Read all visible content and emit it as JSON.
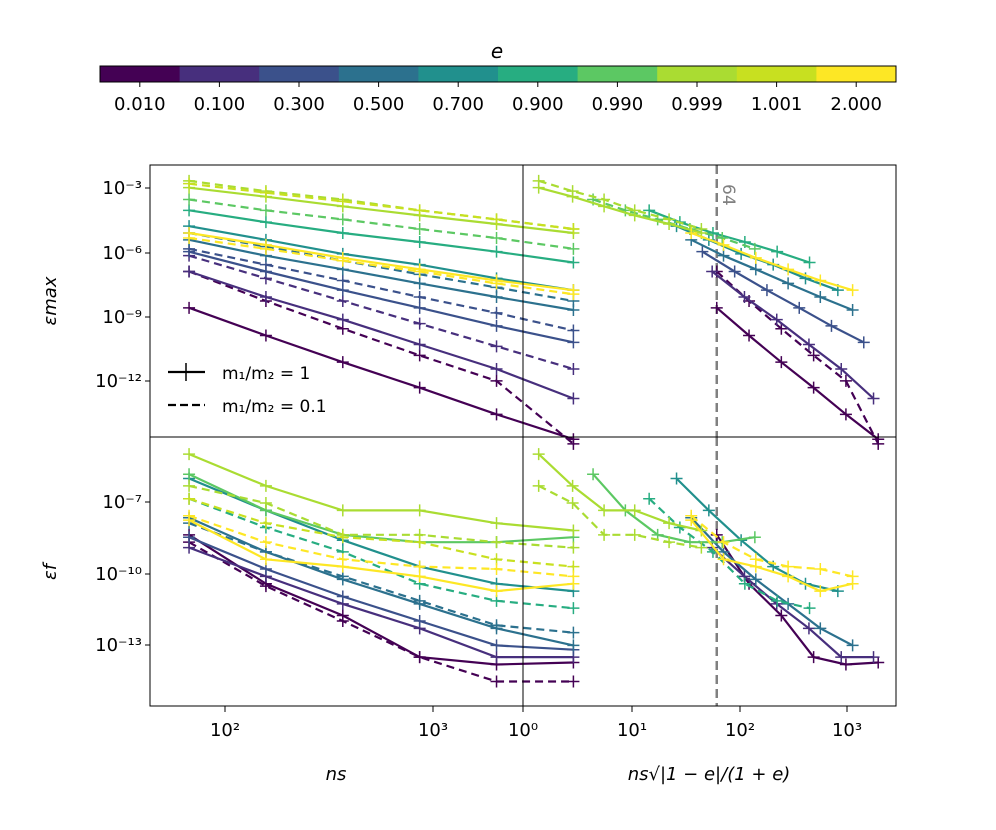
{
  "colorbar": {
    "title": "e",
    "ticks": [
      "0.010",
      "0.100",
      "0.300",
      "0.500",
      "0.700",
      "0.900",
      "0.990",
      "0.999",
      "1.001",
      "2.000"
    ],
    "colors": [
      "#440154",
      "#472f7d",
      "#3b518b",
      "#2c718e",
      "#21908d",
      "#27ad81",
      "#5cc863",
      "#aadc32",
      "#c8e020",
      "#fde725"
    ]
  },
  "legend": {
    "solid": "m₁/m₂ = 1",
    "dashed": "m₁/m₂ = 0.1"
  },
  "annotation": "64",
  "chart_data": [
    {
      "type": "line",
      "panel": "top-left",
      "ylabel": "εmax",
      "xscale": "log",
      "yscale": "log",
      "xlim": [
        45,
        1300
      ],
      "ylim": [
        1e-14,
        0.01
      ],
      "yticks": [
        "10⁻³",
        "10⁻⁶",
        "10⁻⁹",
        "10⁻¹²"
      ],
      "x": [
        64,
        128,
        256,
        512,
        1024,
        2048
      ],
      "series": [
        {
          "e": "0.010",
          "style": "solid",
          "values": [
            5e-09,
            3e-10,
            2e-11,
            1.5e-12,
            1e-13,
            8e-15
          ]
        },
        {
          "e": "0.010",
          "style": "dashed",
          "values": [
            2e-07,
            1e-08,
            6e-10,
            4e-11,
            3e-12,
            5e-15
          ]
        },
        {
          "e": "0.100",
          "style": "solid",
          "values": [
            2e-07,
            1.5e-08,
            1.5e-09,
            1.2e-10,
            1e-11,
            5e-13
          ]
        },
        {
          "e": "0.100",
          "style": "dashed",
          "values": [
            1e-06,
            1e-07,
            1e-08,
            1e-09,
            1e-10,
            1e-11
          ]
        },
        {
          "e": "0.300",
          "style": "solid",
          "values": [
            1.5e-06,
            2e-07,
            3e-08,
            5e-09,
            8e-10,
            1.5e-10
          ]
        },
        {
          "e": "0.300",
          "style": "dashed",
          "values": [
            2e-06,
            4e-07,
            8e-08,
            1.5e-08,
            3e-09,
            5e-10
          ]
        },
        {
          "e": "0.500",
          "style": "solid",
          "values": [
            5e-06,
            1e-06,
            2.5e-07,
            6e-08,
            1.5e-08,
            4e-09
          ]
        },
        {
          "e": "0.500",
          "style": "dashed",
          "values": [
            1e-05,
            2.5e-06,
            6e-07,
            1.5e-07,
            4e-08,
            1e-08
          ]
        },
        {
          "e": "0.700",
          "style": "solid",
          "values": [
            2e-05,
            5e-06,
            1.2e-06,
            4e-07,
            1e-07,
            3e-08
          ]
        },
        {
          "e": "0.900",
          "style": "solid",
          "values": [
            0.0001,
            3e-05,
            1e-05,
            4e-06,
            1.5e-06,
            5e-07
          ]
        },
        {
          "e": "0.990",
          "style": "dashed",
          "values": [
            0.0003,
            0.0001,
            4e-05,
            1.5e-05,
            6e-06,
            2e-06
          ]
        },
        {
          "e": "0.999",
          "style": "solid",
          "values": [
            0.001,
            0.0004,
            0.00015,
            6e-05,
            2.5e-05,
            1e-05
          ]
        },
        {
          "e": "0.999",
          "style": "dashed",
          "values": [
            0.002,
            0.0007,
            0.0003,
            0.0001,
            4e-05,
            1.5e-05
          ]
        },
        {
          "e": "1.001",
          "style": "dashed",
          "values": [
            0.0015,
            0.0006,
            0.00025,
            0.0001,
            4e-05,
            1.5e-05
          ]
        },
        {
          "e": "2.000",
          "style": "solid",
          "values": [
            1e-05,
            3e-06,
            8e-07,
            2.5e-07,
            8e-08,
            3e-08
          ]
        },
        {
          "e": "2.000",
          "style": "dashed",
          "values": [
            6e-06,
            2e-06,
            6e-07,
            2e-07,
            6e-08,
            2e-08
          ]
        }
      ]
    },
    {
      "type": "line",
      "panel": "top-right",
      "xscale": "log",
      "yscale": "log",
      "xlim": [
        1,
        3000
      ],
      "ylim": [
        1e-14,
        0.01
      ],
      "annotation_x": 64,
      "series": [
        {
          "e": "0.010",
          "style": "solid",
          "x": [
            64,
            128,
            256,
            512,
            1024,
            2048
          ],
          "values": [
            5e-09,
            3e-10,
            2e-11,
            1.5e-12,
            1e-13,
            8e-15
          ]
        },
        {
          "e": "0.010",
          "style": "dashed",
          "x": [
            64,
            128,
            256,
            512,
            1024,
            2048
          ],
          "values": [
            2e-07,
            1e-08,
            6e-10,
            4e-11,
            3e-12,
            5e-15
          ]
        },
        {
          "e": "0.100",
          "style": "solid",
          "x": [
            58,
            116,
            232,
            463,
            926,
            1852
          ],
          "values": [
            2e-07,
            1.5e-08,
            1.5e-09,
            1.2e-10,
            1e-11,
            5e-13
          ]
        },
        {
          "e": "0.300",
          "style": "solid",
          "x": [
            47,
            94,
            188,
            376,
            751,
            1502
          ],
          "values": [
            1.5e-06,
            2e-07,
            3e-08,
            5e-09,
            8e-10,
            1.5e-10
          ]
        },
        {
          "e": "0.500",
          "style": "solid",
          "x": [
            37,
            74,
            148,
            296,
            591,
            1182
          ],
          "values": [
            5e-06,
            1e-06,
            2.5e-07,
            6e-08,
            1.5e-08,
            4e-09
          ]
        },
        {
          "e": "0.700",
          "style": "solid",
          "x": [
            27,
            54,
            108,
            215,
            430,
            861
          ],
          "values": [
            2e-05,
            5e-06,
            1.2e-06,
            4e-07,
            1e-07,
            3e-08
          ]
        },
        {
          "e": "0.900",
          "style": "solid",
          "x": [
            15,
            29,
            59,
            117,
            234,
            469
          ],
          "values": [
            0.0001,
            3e-05,
            1e-05,
            4e-06,
            1.5e-06,
            5e-07
          ]
        },
        {
          "e": "0.990",
          "style": "dashed",
          "x": [
            4.5,
            9,
            18,
            36,
            72,
            145
          ],
          "values": [
            0.0003,
            0.0001,
            4e-05,
            1.5e-05,
            6e-06,
            2e-06
          ]
        },
        {
          "e": "0.999",
          "style": "solid",
          "x": [
            1.4,
            2.9,
            5.7,
            11,
            23,
            46
          ],
          "values": [
            0.001,
            0.0004,
            0.00015,
            6e-05,
            2.5e-05,
            1e-05
          ]
        },
        {
          "e": "0.999",
          "style": "dashed",
          "x": [
            1.4,
            2.9,
            5.7,
            11,
            23,
            46
          ],
          "values": [
            0.002,
            0.0007,
            0.0003,
            0.0001,
            4e-05,
            1.5e-05
          ]
        },
        {
          "e": "2.000",
          "style": "solid",
          "x": [
            37,
            74,
            148,
            296,
            591,
            1182
          ],
          "values": [
            1e-05,
            3e-06,
            8e-07,
            2.5e-07,
            8e-08,
            3e-08
          ]
        }
      ]
    },
    {
      "type": "line",
      "panel": "bottom-left",
      "ylabel": "εf",
      "xlabel": "ns",
      "xscale": "log",
      "yscale": "log",
      "xlim": [
        45,
        1300
      ],
      "ylim": [
        1e-15,
        0.0001
      ],
      "xticks": [
        "10²",
        "10³"
      ],
      "yticks": [
        "10⁻⁷",
        "10⁻¹⁰",
        "10⁻¹³"
      ],
      "x": [
        64,
        128,
        256,
        512,
        1024,
        2048
      ],
      "series": [
        {
          "e": "0.010",
          "style": "solid",
          "values": [
            1e-08,
            1e-10,
            5e-12,
            1e-13,
            5e-14,
            6e-14
          ]
        },
        {
          "e": "0.010",
          "style": "dashed",
          "values": [
            5e-09,
            8e-11,
            3e-12,
            1e-13,
            1e-14,
            1e-14
          ]
        },
        {
          "e": "0.100",
          "style": "solid",
          "values": [
            3e-09,
            2e-10,
            1.5e-11,
            1.5e-12,
            1e-13,
            1e-13
          ]
        },
        {
          "e": "0.300",
          "style": "solid",
          "values": [
            8e-09,
            4e-10,
            3e-11,
            3e-12,
            3e-13,
            2e-13
          ]
        },
        {
          "e": "0.500",
          "style": "solid",
          "values": [
            5e-08,
            2e-09,
            1.5e-10,
            1.5e-11,
            1.5e-12,
            3e-13
          ]
        },
        {
          "e": "0.500",
          "style": "dashed",
          "values": [
            3e-08,
            2e-09,
            2e-10,
            2e-11,
            2e-12,
            1e-12
          ]
        },
        {
          "e": "0.700",
          "style": "solid",
          "values": [
            2e-06,
            1e-07,
            6e-09,
            5e-10,
            1e-10,
            5e-11
          ]
        },
        {
          "e": "0.900",
          "style": "dashed",
          "values": [
            3e-07,
            2e-08,
            2e-09,
            1e-10,
            2e-11,
            1e-11
          ]
        },
        {
          "e": "0.990",
          "style": "solid",
          "values": [
            3e-06,
            1e-07,
            1e-08,
            5e-09,
            5e-09,
            8e-09
          ]
        },
        {
          "e": "0.999",
          "style": "solid",
          "values": [
            2e-05,
            1e-06,
            1e-07,
            1e-07,
            3e-08,
            1.5e-08
          ]
        },
        {
          "e": "0.999",
          "style": "dashed",
          "values": [
            1e-06,
            2e-07,
            1e-08,
            1e-08,
            5e-09,
            3e-09
          ]
        },
        {
          "e": "1.001",
          "style": "dashed",
          "values": [
            3e-07,
            3e-08,
            8e-09,
            5e-09,
            1e-09,
            5e-10
          ]
        },
        {
          "e": "2.000",
          "style": "solid",
          "values": [
            4e-08,
            1e-09,
            5e-10,
            2e-10,
            5e-11,
            1e-10
          ]
        },
        {
          "e": "2.000",
          "style": "dashed",
          "values": [
            6e-08,
            5e-09,
            1e-09,
            5e-10,
            4e-10,
            2e-10
          ]
        }
      ]
    },
    {
      "type": "line",
      "panel": "bottom-right",
      "xlabel": "ns√|1 − e|/(1 + e)",
      "xscale": "log",
      "yscale": "log",
      "xlim": [
        1,
        3000
      ],
      "ylim": [
        1e-15,
        0.0001
      ],
      "xticks": [
        "10⁰",
        "10¹",
        "10²",
        "10³"
      ],
      "annotation_x": 64,
      "series": [
        {
          "e": "0.010",
          "style": "solid",
          "x": [
            64,
            128,
            256,
            512,
            1024,
            2048
          ],
          "values": [
            1e-08,
            1e-10,
            5e-12,
            1e-13,
            5e-14,
            6e-14
          ]
        },
        {
          "e": "0.100",
          "style": "solid",
          "x": [
            58,
            116,
            232,
            463,
            926,
            1852
          ],
          "values": [
            3e-09,
            2e-10,
            1.5e-11,
            1.5e-12,
            1e-13,
            1e-13
          ]
        },
        {
          "e": "0.500",
          "style": "solid",
          "x": [
            37,
            74,
            148,
            296,
            591,
            1182
          ],
          "values": [
            5e-08,
            2e-09,
            1.5e-10,
            1.5e-11,
            1.5e-12,
            3e-13
          ]
        },
        {
          "e": "0.700",
          "style": "solid",
          "x": [
            27,
            54,
            108,
            215,
            430,
            861
          ],
          "values": [
            2e-06,
            1e-07,
            6e-09,
            5e-10,
            1e-10,
            5e-11
          ]
        },
        {
          "e": "0.900",
          "style": "dashed",
          "x": [
            15,
            29,
            59,
            117,
            234,
            469
          ],
          "values": [
            3e-07,
            2e-08,
            2e-09,
            1e-10,
            2e-11,
            1e-11
          ]
        },
        {
          "e": "0.990",
          "style": "solid",
          "x": [
            4.5,
            9,
            18,
            36,
            72,
            145
          ],
          "values": [
            3e-06,
            1e-07,
            1e-08,
            5e-09,
            5e-09,
            8e-09
          ]
        },
        {
          "e": "0.999",
          "style": "solid",
          "x": [
            1.4,
            2.9,
            5.7,
            11,
            23,
            46
          ],
          "values": [
            2e-05,
            1e-06,
            1e-07,
            1e-07,
            3e-08,
            1.5e-08
          ]
        },
        {
          "e": "0.999",
          "style": "dashed",
          "x": [
            1.4,
            2.9,
            5.7,
            11,
            23,
            46
          ],
          "values": [
            1e-06,
            2e-07,
            1e-08,
            1e-08,
            5e-09,
            3e-09
          ]
        },
        {
          "e": "2.000",
          "style": "solid",
          "x": [
            37,
            74,
            148,
            296,
            591,
            1182
          ],
          "values": [
            4e-08,
            1e-09,
            5e-10,
            2e-10,
            5e-11,
            1e-10
          ]
        },
        {
          "e": "2.000",
          "style": "dashed",
          "x": [
            37,
            74,
            148,
            296,
            591,
            1182
          ],
          "values": [
            6e-08,
            5e-09,
            1e-09,
            5e-10,
            4e-10,
            2e-10
          ]
        }
      ]
    }
  ]
}
